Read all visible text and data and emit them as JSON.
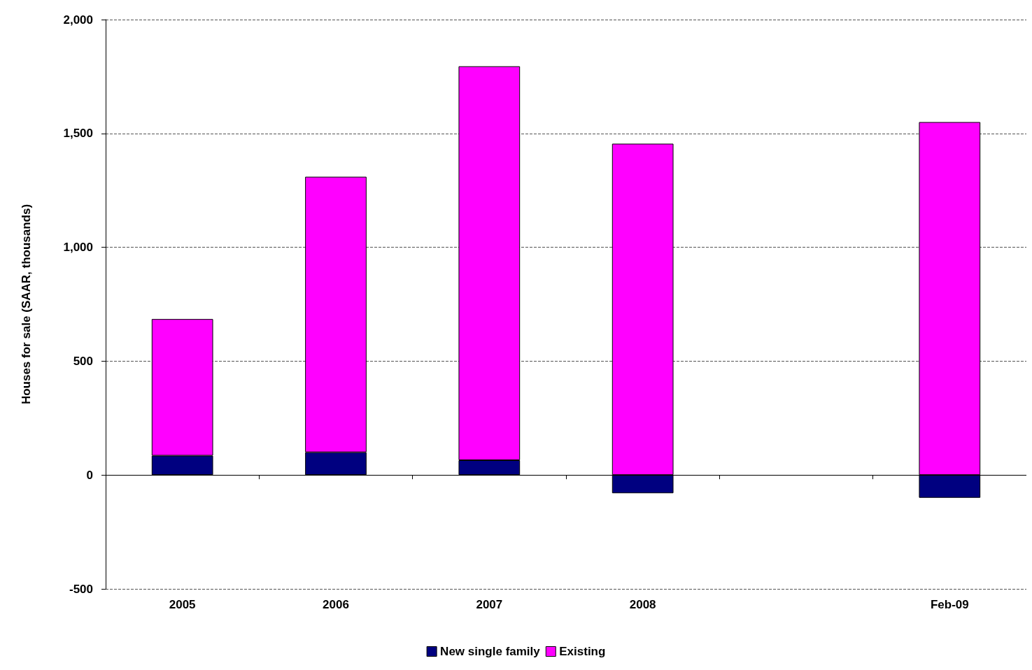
{
  "chart_data": {
    "type": "bar",
    "stacked": true,
    "ylabel": "Houses for sale (SAAR, thousands)",
    "categories": [
      "2005",
      "2006",
      "2007",
      "2008",
      null,
      "Feb-09"
    ],
    "series": [
      {
        "name": "New single family",
        "color": "#000080",
        "values": [
          85,
          100,
          65,
          -80,
          null,
          -100
        ]
      },
      {
        "name": "Existing",
        "color": "#ff00ff",
        "values": [
          600,
          1210,
          1730,
          1455,
          null,
          1550
        ]
      }
    ],
    "ylim": [
      -500,
      2000
    ],
    "yticks": [
      {
        "value": -500,
        "label": "-500"
      },
      {
        "value": 0,
        "label": "0"
      },
      {
        "value": 500,
        "label": "500"
      },
      {
        "value": 1000,
        "label": "1,000"
      },
      {
        "value": 1500,
        "label": "1,500"
      },
      {
        "value": 2000,
        "label": "2,000"
      }
    ],
    "grid": "y",
    "legend": "bottom"
  }
}
